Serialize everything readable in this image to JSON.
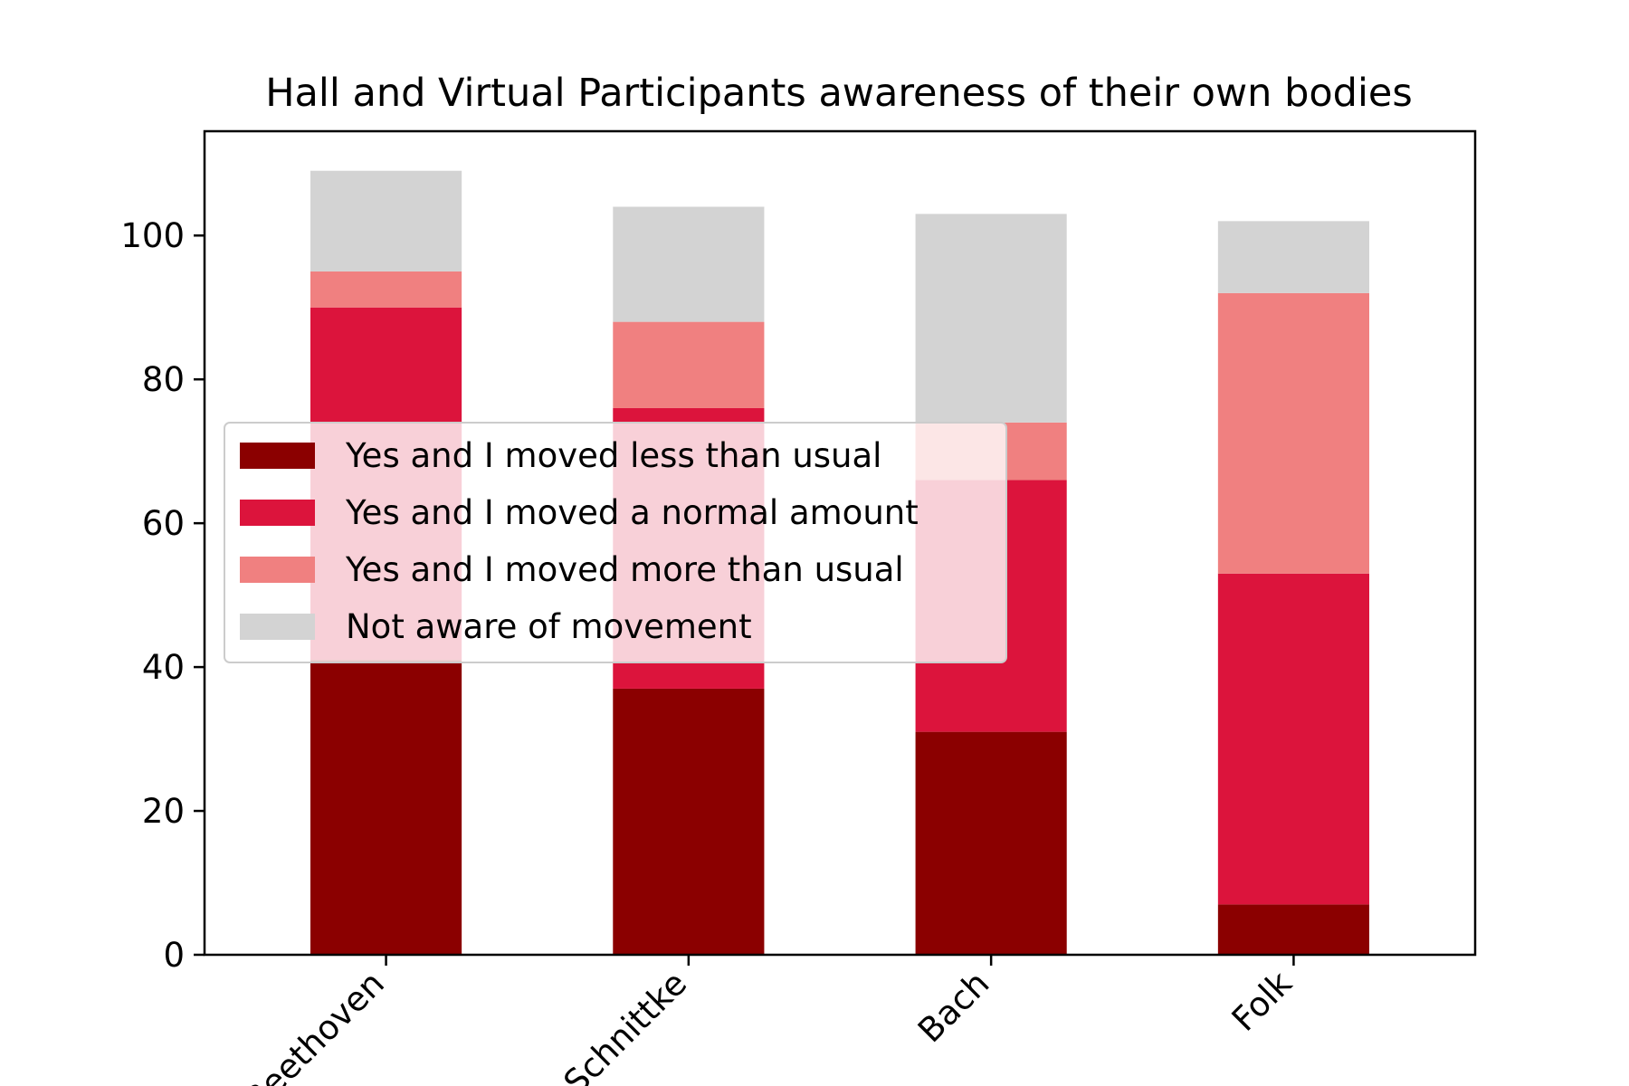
{
  "chart_data": {
    "type": "bar",
    "stacked": true,
    "title": "Hall and Virtual Participants awareness of their own bodies",
    "xlabel": "",
    "ylabel": "",
    "categories": [
      "Beethoven",
      "Schnittke",
      "Bach",
      "Folk"
    ],
    "series": [
      {
        "name": "Yes and I moved less than usual",
        "color": "#8b0000",
        "values": [
          41,
          37,
          31,
          7
        ]
      },
      {
        "name": "Yes and I moved a normal amount",
        "color": "#dc143c",
        "values": [
          49,
          39,
          35,
          46
        ]
      },
      {
        "name": "Yes and I moved more than usual",
        "color": "#f08080",
        "values": [
          5,
          12,
          8,
          39
        ]
      },
      {
        "name": "Not aware of movement",
        "color": "#d3d3d3",
        "values": [
          14,
          16,
          29,
          10
        ]
      }
    ],
    "ylim": [
      0,
      114.5
    ],
    "yticks": [
      0,
      20,
      40,
      60,
      80,
      100
    ],
    "legend_position": "center-left",
    "grid": false
  }
}
